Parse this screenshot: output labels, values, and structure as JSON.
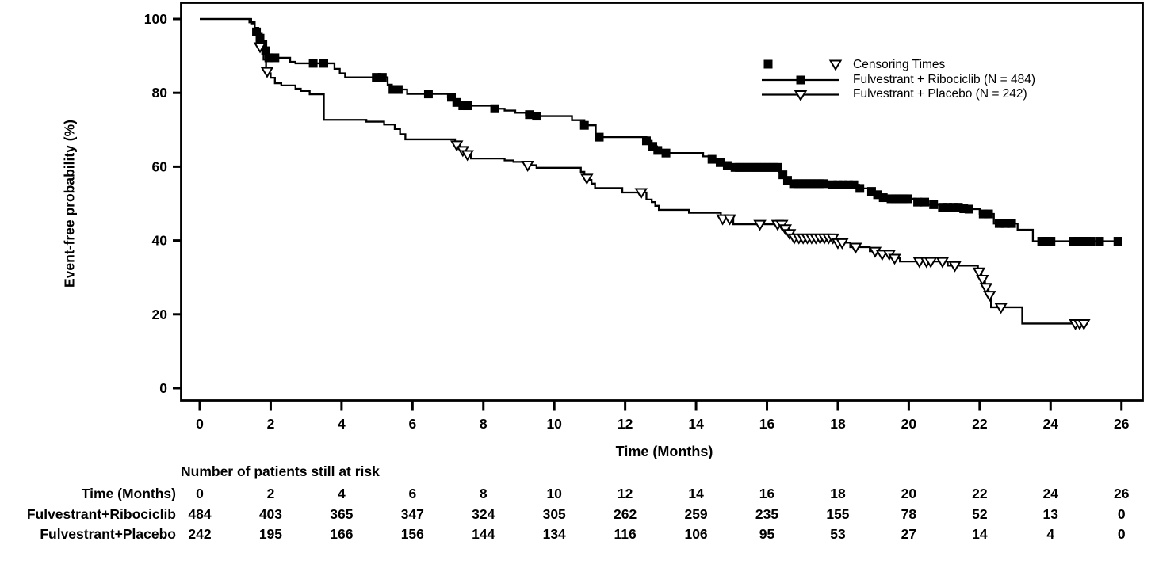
{
  "chart_data": {
    "type": "line",
    "subtype": "kaplan-meier-step",
    "title": "",
    "xlabel": "Time (Months)",
    "ylabel": "Event-free probability (%)",
    "xlim": [
      0,
      26
    ],
    "ylim": [
      0,
      100
    ],
    "xticks": [
      0,
      2,
      4,
      6,
      8,
      10,
      12,
      14,
      16,
      18,
      20,
      22,
      24,
      26
    ],
    "yticks": [
      0,
      20,
      40,
      60,
      80,
      100
    ],
    "grid": "off",
    "legend_position": "top-right-inside",
    "legend": {
      "censoring_label": "Censoring Times"
    },
    "colors": {
      "line": "#000000",
      "background": "#ffffff"
    },
    "series": [
      {
        "name": "Fulvestrant + Ribociclib (N = 484)",
        "n": 484,
        "marker": "filled-square",
        "end_month": 26.0,
        "steps": [
          [
            0,
            100
          ],
          [
            1.4,
            99.1
          ],
          [
            1.55,
            97.6
          ],
          [
            1.65,
            96
          ],
          [
            1.75,
            94
          ],
          [
            1.82,
            92.2
          ],
          [
            1.88,
            90.6
          ],
          [
            1.95,
            89.5
          ],
          [
            2.55,
            88.4
          ],
          [
            2.7,
            88
          ],
          [
            3.8,
            86.5
          ],
          [
            3.95,
            85.3
          ],
          [
            4.1,
            84.2
          ],
          [
            5.3,
            82.2
          ],
          [
            5.42,
            80.9
          ],
          [
            5.85,
            79.7
          ],
          [
            7.0,
            78.8
          ],
          [
            7.15,
            78
          ],
          [
            7.3,
            77.2
          ],
          [
            7.45,
            76.5
          ],
          [
            8.3,
            75.7
          ],
          [
            8.6,
            75.2
          ],
          [
            8.9,
            74.6
          ],
          [
            9.2,
            74.1
          ],
          [
            9.45,
            73.7
          ],
          [
            10.5,
            72.6
          ],
          [
            10.85,
            71.2
          ],
          [
            11.17,
            68.7
          ],
          [
            11.3,
            68
          ],
          [
            12.6,
            67
          ],
          [
            12.75,
            65.5
          ],
          [
            12.9,
            64.4
          ],
          [
            13.1,
            63.7
          ],
          [
            14.2,
            62.8
          ],
          [
            14.45,
            62
          ],
          [
            14.65,
            61.1
          ],
          [
            14.85,
            60.3
          ],
          [
            15.05,
            59.8
          ],
          [
            16.35,
            58.5
          ],
          [
            16.5,
            57
          ],
          [
            16.62,
            55.9
          ],
          [
            16.72,
            55.4
          ],
          [
            17.8,
            55.1
          ],
          [
            18.6,
            54.1
          ],
          [
            18.9,
            53.3
          ],
          [
            19.1,
            52.4
          ],
          [
            19.3,
            51.6
          ],
          [
            19.45,
            51.3
          ],
          [
            20.2,
            50.4
          ],
          [
            20.55,
            49.7
          ],
          [
            20.9,
            49
          ],
          [
            21.6,
            48.5
          ],
          [
            22.0,
            47.2
          ],
          [
            22.4,
            44.6
          ],
          [
            23.07,
            42.9
          ],
          [
            23.5,
            39.8
          ]
        ],
        "censor_marks": [
          [
            1.6,
            96.5
          ],
          [
            1.7,
            94.8
          ],
          [
            1.78,
            93.2
          ],
          [
            1.86,
            91.4
          ],
          [
            1.95,
            89.5
          ],
          [
            2.12,
            89.5
          ],
          [
            3.2,
            88
          ],
          [
            3.5,
            88
          ],
          [
            4.98,
            84.2
          ],
          [
            5.15,
            84.2
          ],
          [
            5.45,
            80.9
          ],
          [
            5.6,
            80.9
          ],
          [
            6.45,
            79.7
          ],
          [
            7.1,
            78.8
          ],
          [
            7.25,
            77.4
          ],
          [
            7.42,
            76.5
          ],
          [
            7.55,
            76.5
          ],
          [
            8.32,
            75.7
          ],
          [
            9.3,
            74.1
          ],
          [
            9.5,
            73.7
          ],
          [
            10.85,
            71.2
          ],
          [
            11.27,
            68
          ],
          [
            12.6,
            67
          ],
          [
            12.78,
            65.5
          ],
          [
            12.92,
            64.4
          ],
          [
            13.15,
            63.7
          ],
          [
            14.45,
            62
          ],
          [
            14.68,
            61.1
          ],
          [
            14.88,
            60.3
          ],
          [
            15.1,
            59.8
          ],
          [
            15.22,
            59.8
          ],
          [
            15.34,
            59.8
          ],
          [
            15.46,
            59.8
          ],
          [
            15.58,
            59.8
          ],
          [
            15.7,
            59.8
          ],
          [
            15.82,
            59.8
          ],
          [
            15.94,
            59.8
          ],
          [
            16.06,
            59.8
          ],
          [
            16.18,
            59.8
          ],
          [
            16.3,
            59.8
          ],
          [
            16.45,
            57.8
          ],
          [
            16.58,
            56.3
          ],
          [
            16.75,
            55.4
          ],
          [
            16.87,
            55.4
          ],
          [
            16.99,
            55.4
          ],
          [
            17.11,
            55.4
          ],
          [
            17.23,
            55.4
          ],
          [
            17.35,
            55.4
          ],
          [
            17.47,
            55.4
          ],
          [
            17.59,
            55.4
          ],
          [
            17.85,
            55.1
          ],
          [
            18.0,
            55.1
          ],
          [
            18.15,
            55.1
          ],
          [
            18.3,
            55.1
          ],
          [
            18.45,
            55.1
          ],
          [
            18.62,
            54.1
          ],
          [
            18.95,
            53.3
          ],
          [
            19.12,
            52.4
          ],
          [
            19.28,
            51.6
          ],
          [
            19.5,
            51.3
          ],
          [
            19.62,
            51.3
          ],
          [
            19.74,
            51.3
          ],
          [
            19.86,
            51.3
          ],
          [
            19.98,
            51.3
          ],
          [
            20.25,
            50.4
          ],
          [
            20.45,
            50.4
          ],
          [
            20.7,
            49.7
          ],
          [
            20.95,
            49
          ],
          [
            21.1,
            49
          ],
          [
            21.25,
            49
          ],
          [
            21.4,
            49
          ],
          [
            21.55,
            48.6
          ],
          [
            21.7,
            48.5
          ],
          [
            22.1,
            47.2
          ],
          [
            22.25,
            47.2
          ],
          [
            22.55,
            44.6
          ],
          [
            22.72,
            44.6
          ],
          [
            22.9,
            44.6
          ],
          [
            23.75,
            39.8
          ],
          [
            23.88,
            39.8
          ],
          [
            24.01,
            39.8
          ],
          [
            24.65,
            39.8
          ],
          [
            24.77,
            39.8
          ],
          [
            24.89,
            39.8
          ],
          [
            25.01,
            39.8
          ],
          [
            25.13,
            39.8
          ],
          [
            25.38,
            39.8
          ],
          [
            25.9,
            39.8
          ]
        ]
      },
      {
        "name": "Fulvestrant + Placebo (N = 242)",
        "n": 242,
        "marker": "open-triangle-down",
        "end_month": 25.05,
        "steps": [
          [
            0,
            100
          ],
          [
            1.45,
            98.8
          ],
          [
            1.55,
            96.2
          ],
          [
            1.65,
            93.6
          ],
          [
            1.72,
            91.5
          ],
          [
            1.8,
            89
          ],
          [
            1.87,
            86.8
          ],
          [
            1.93,
            85.3
          ],
          [
            2.0,
            84.1
          ],
          [
            2.12,
            82.6
          ],
          [
            2.3,
            82
          ],
          [
            2.7,
            81.1
          ],
          [
            2.85,
            80.5
          ],
          [
            3.1,
            79.6
          ],
          [
            3.5,
            72.7
          ],
          [
            4.7,
            72.2
          ],
          [
            5.2,
            71.4
          ],
          [
            5.5,
            70.2
          ],
          [
            5.65,
            68.8
          ],
          [
            5.8,
            67.4
          ],
          [
            7.2,
            65.9
          ],
          [
            7.35,
            64.4
          ],
          [
            7.5,
            63.3
          ],
          [
            7.65,
            62.2
          ],
          [
            8.6,
            61.7
          ],
          [
            8.85,
            61.3
          ],
          [
            9.2,
            60.4
          ],
          [
            9.5,
            59.7
          ],
          [
            10.75,
            58.6
          ],
          [
            10.85,
            57.5
          ],
          [
            10.95,
            56.4
          ],
          [
            11.05,
            55.4
          ],
          [
            11.15,
            54.2
          ],
          [
            11.92,
            53
          ],
          [
            12.6,
            51.1
          ],
          [
            12.75,
            50.4
          ],
          [
            12.85,
            49.4
          ],
          [
            12.95,
            48.3
          ],
          [
            13.8,
            47.5
          ],
          [
            14.7,
            45.9
          ],
          [
            15.05,
            44.4
          ],
          [
            16.5,
            43.2
          ],
          [
            16.62,
            41.9
          ],
          [
            16.75,
            40.7
          ],
          [
            17.95,
            39.4
          ],
          [
            18.35,
            38.2
          ],
          [
            18.9,
            37.1
          ],
          [
            19.2,
            36.3
          ],
          [
            19.55,
            35.2
          ],
          [
            19.75,
            34.3
          ],
          [
            21.1,
            33.2
          ],
          [
            21.95,
            31.5
          ],
          [
            22.05,
            29.5
          ],
          [
            22.15,
            27.3
          ],
          [
            22.25,
            25.2
          ],
          [
            22.32,
            21.9
          ],
          [
            23.2,
            17.5
          ]
        ],
        "censor_marks": [
          [
            1.7,
            92.5
          ],
          [
            1.9,
            85.8
          ],
          [
            7.25,
            65.9
          ],
          [
            7.42,
            64.4
          ],
          [
            7.55,
            63.3
          ],
          [
            9.25,
            60.4
          ],
          [
            10.92,
            56.9
          ],
          [
            12.45,
            53
          ],
          [
            14.75,
            45.9
          ],
          [
            14.95,
            45.9
          ],
          [
            15.8,
            44.4
          ],
          [
            16.3,
            44.4
          ],
          [
            16.42,
            44.4
          ],
          [
            16.52,
            43.2
          ],
          [
            16.64,
            41.9
          ],
          [
            16.77,
            40.7
          ],
          [
            16.9,
            40.7
          ],
          [
            17.02,
            40.7
          ],
          [
            17.14,
            40.7
          ],
          [
            17.26,
            40.7
          ],
          [
            17.38,
            40.7
          ],
          [
            17.5,
            40.7
          ],
          [
            17.62,
            40.7
          ],
          [
            17.74,
            40.7
          ],
          [
            17.86,
            40.7
          ],
          [
            18.0,
            39.4
          ],
          [
            18.12,
            39.4
          ],
          [
            18.5,
            38.2
          ],
          [
            19.05,
            37.1
          ],
          [
            19.25,
            36.3
          ],
          [
            19.45,
            36.3
          ],
          [
            19.6,
            35.2
          ],
          [
            20.3,
            34.3
          ],
          [
            20.5,
            34.3
          ],
          [
            20.62,
            34.3
          ],
          [
            20.95,
            34.3
          ],
          [
            21.3,
            33.2
          ],
          [
            21.98,
            31.5
          ],
          [
            22.08,
            29.5
          ],
          [
            22.18,
            27.3
          ],
          [
            22.28,
            25.2
          ],
          [
            22.6,
            21.9
          ],
          [
            24.7,
            17.5
          ],
          [
            24.82,
            17.5
          ],
          [
            24.94,
            17.5
          ]
        ]
      }
    ],
    "risk_table": {
      "header": "Number of patients still at risk",
      "time_label": "Time (Months)",
      "times": [
        0,
        2,
        4,
        6,
        8,
        10,
        12,
        14,
        16,
        18,
        20,
        22,
        24,
        26
      ],
      "rows": [
        {
          "label": "Fulvestrant+Ribociclib",
          "values": [
            484,
            403,
            365,
            347,
            324,
            305,
            262,
            259,
            235,
            155,
            78,
            52,
            13,
            0
          ]
        },
        {
          "label": "Fulvestrant+Placebo",
          "values": [
            242,
            195,
            166,
            156,
            144,
            134,
            116,
            106,
            95,
            53,
            27,
            14,
            4,
            0
          ]
        }
      ]
    }
  }
}
